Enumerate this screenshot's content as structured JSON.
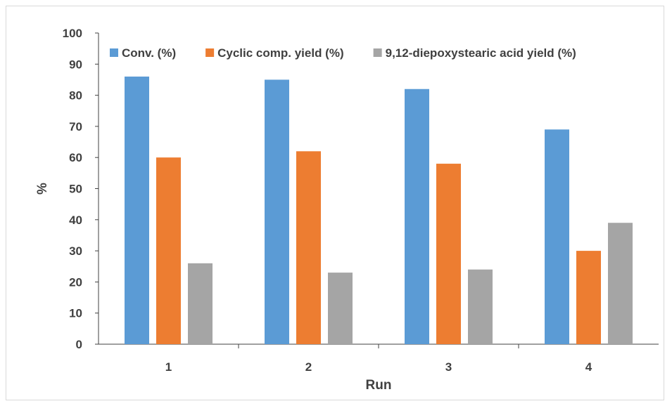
{
  "chart_data": {
    "type": "bar",
    "title": "",
    "xlabel": "Run",
    "ylabel": "%",
    "categories": [
      "1",
      "2",
      "3",
      "4"
    ],
    "series": [
      {
        "name": "Conv. (%)",
        "color": "#5b9bd5",
        "values": [
          86,
          85,
          82,
          69
        ]
      },
      {
        "name": "Cyclic comp. yield (%)",
        "color": "#ed7d31",
        "values": [
          60,
          62,
          58,
          30
        ]
      },
      {
        "name": "9,12-diepoxystearic acid yield (%)",
        "color": "#a5a5a5",
        "values": [
          26,
          23,
          24,
          39
        ]
      }
    ],
    "ylim": [
      0,
      100
    ],
    "yticks": [
      "0",
      "10",
      "20",
      "30",
      "40",
      "50",
      "60",
      "70",
      "80",
      "90",
      "100"
    ],
    "grid": false,
    "legend_position": "top"
  }
}
